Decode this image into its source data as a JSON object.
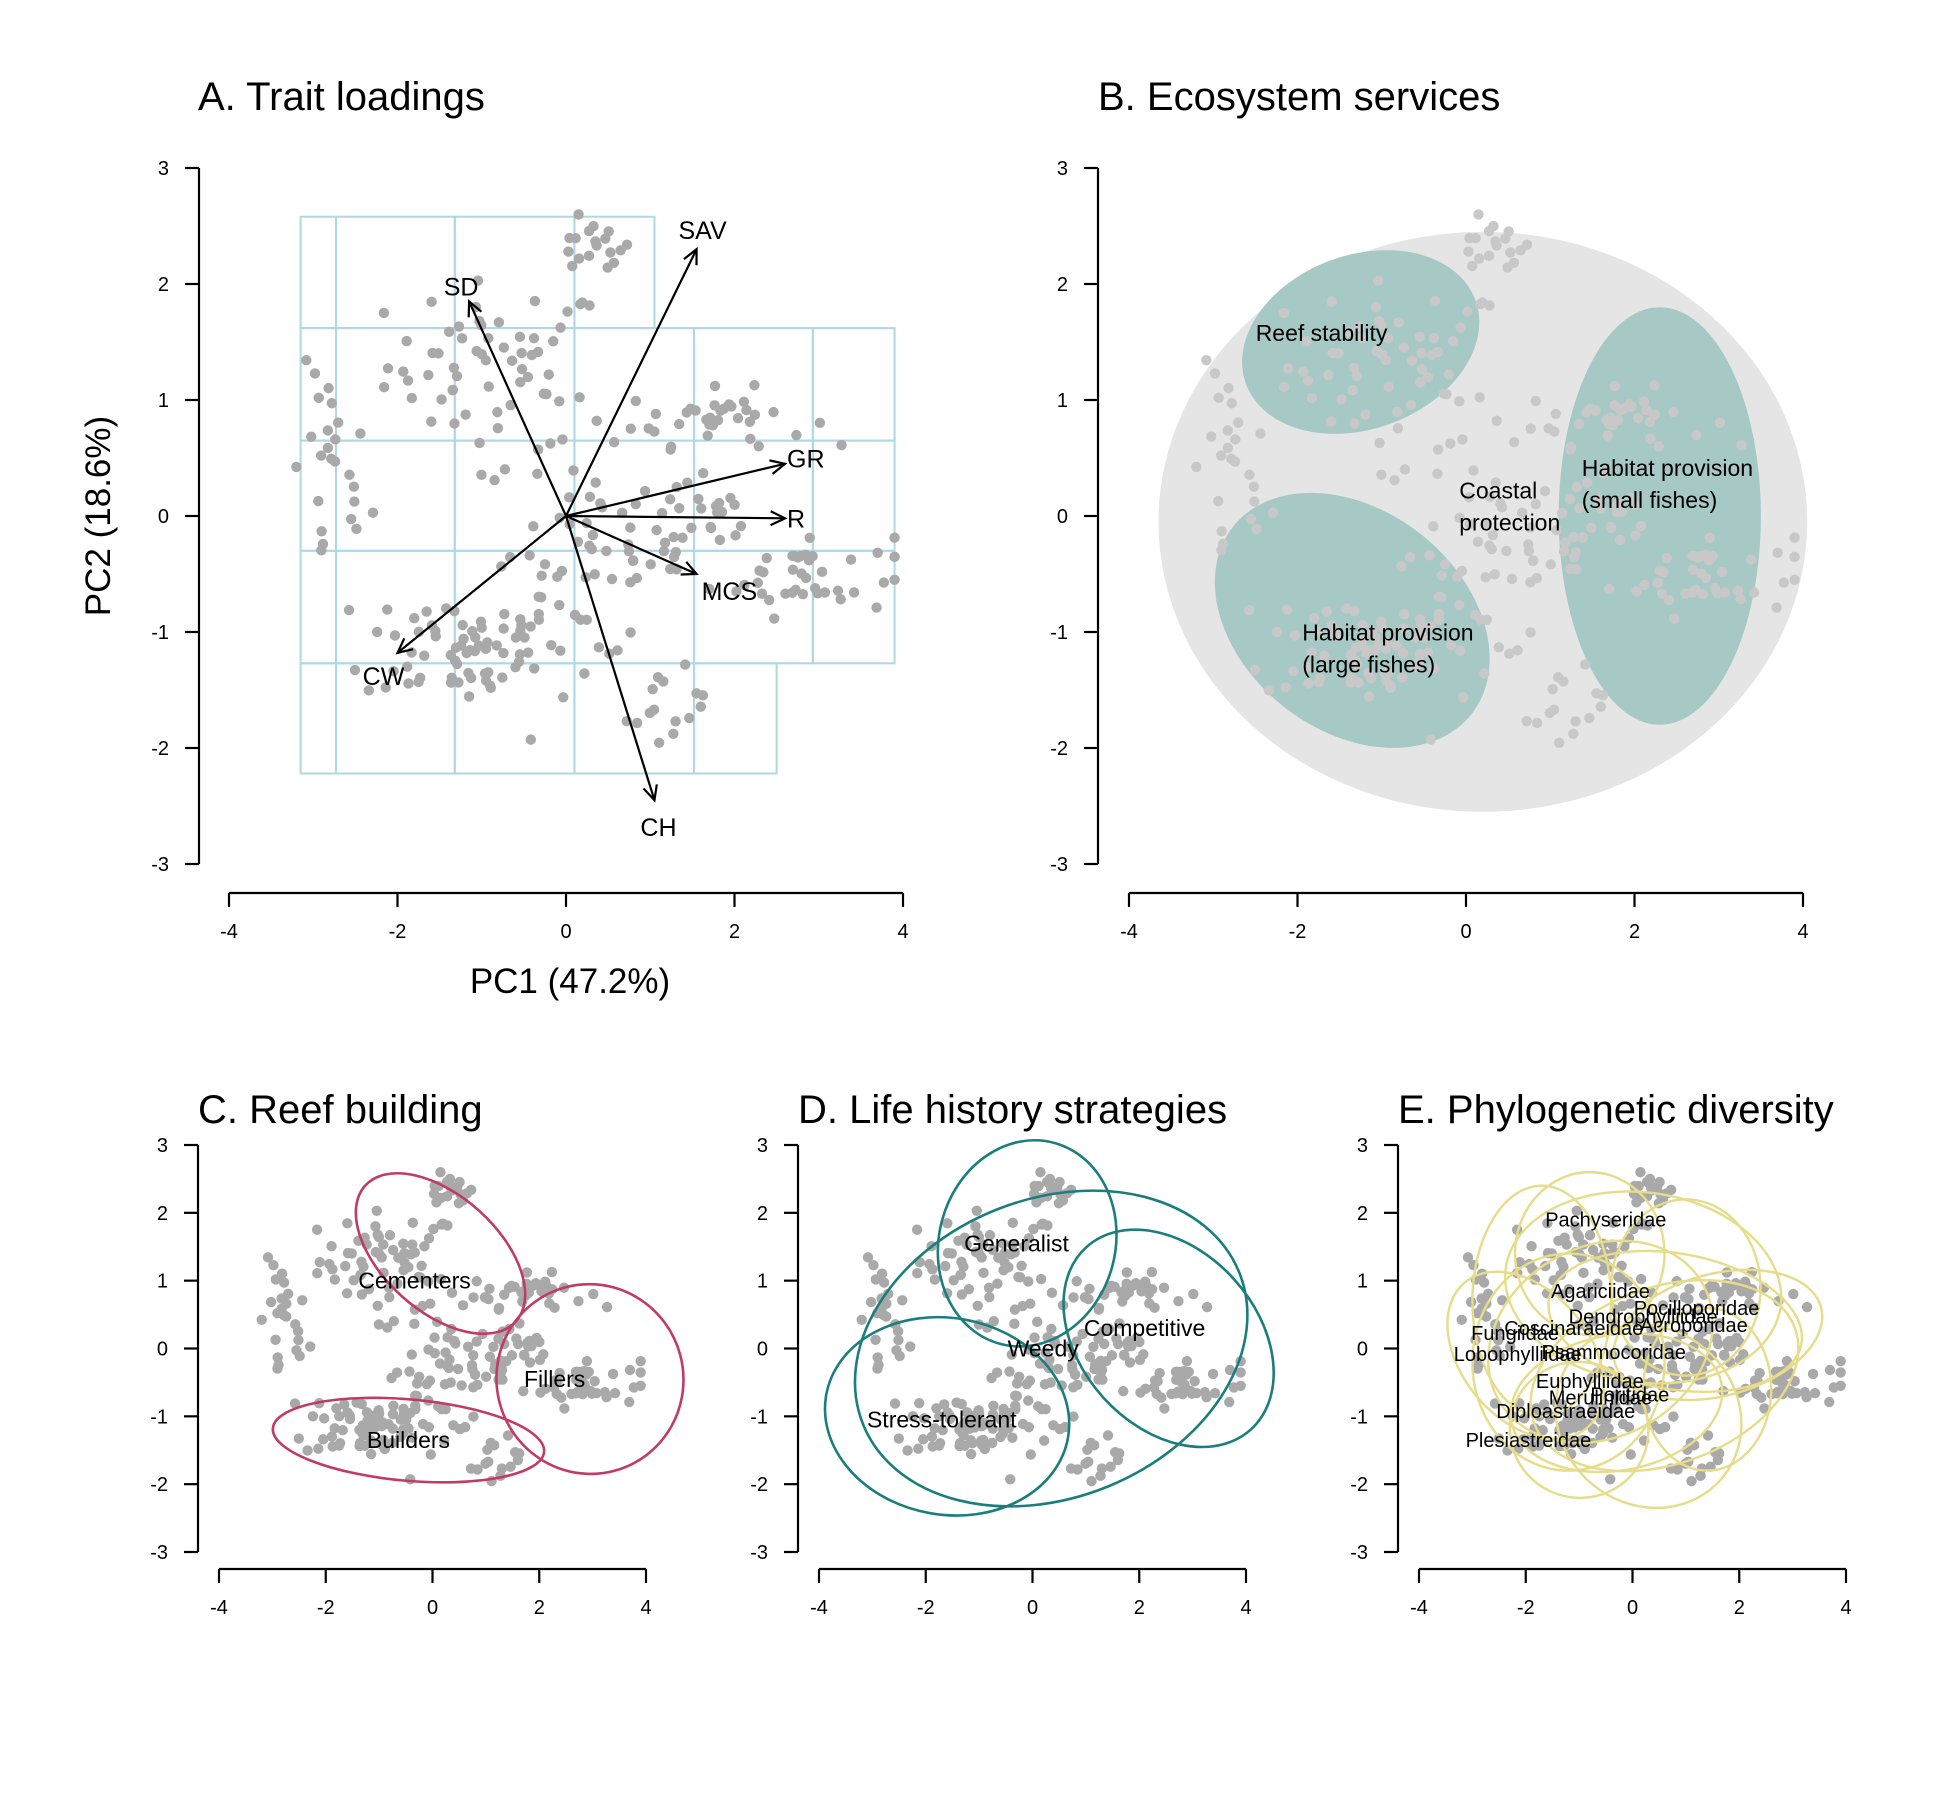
{
  "chart_data": [
    {
      "panel": "A",
      "type": "scatter",
      "title": "A. Trait loadings",
      "xlabel": "PC1 (47.2%)",
      "ylabel": "PC2 (18.6%)",
      "xlim": [
        -4,
        4
      ],
      "ylim": [
        -3,
        3
      ],
      "xticks": [
        "-4",
        "-2",
        "0",
        "2",
        "4"
      ],
      "yticks": [
        "-3",
        "-2",
        "-1",
        "0",
        "1",
        "2",
        "3"
      ],
      "grid_x": [
        -4.15,
        -2.73,
        -1.32,
        0.1,
        1.52,
        2.93
      ],
      "grid_rows": [
        {
          "y": [
            1.62,
            2.58
          ],
          "x": [
            -3.15,
            1.05
          ]
        },
        {
          "y": [
            0.65,
            1.62
          ],
          "x": [
            -3.15,
            3.9
          ]
        },
        {
          "y": [
            -0.3,
            0.65
          ],
          "x": [
            -3.15,
            3.9
          ]
        },
        {
          "y": [
            -1.27,
            -0.3
          ],
          "x": [
            -3.15,
            3.9
          ]
        },
        {
          "y": [
            -2.22,
            -1.27
          ],
          "x": [
            -3.15,
            2.5
          ]
        }
      ],
      "arrows": [
        {
          "label": "SD",
          "x": -1.15,
          "y": 1.85
        },
        {
          "label": "SAV",
          "x": 1.55,
          "y": 2.3
        },
        {
          "label": "GR",
          "x": 2.6,
          "y": 0.45
        },
        {
          "label": "R",
          "x": 2.6,
          "y": -0.02
        },
        {
          "label": "MCS",
          "x": 1.55,
          "y": -0.5
        },
        {
          "label": "CH",
          "x": 1.05,
          "y": -2.45
        },
        {
          "label": "CW",
          "x": -2.0,
          "y": -1.18
        }
      ],
      "grid_color": "#add8e6",
      "point_color": "#a9a9a9"
    },
    {
      "panel": "B",
      "type": "scatter",
      "title": "B. Ecosystem services",
      "xlim": [
        -4,
        4
      ],
      "ylim": [
        -3,
        3
      ],
      "xticks": [
        "-4",
        "-2",
        "0",
        "2",
        "4"
      ],
      "yticks": [
        "-3",
        "-2",
        "-1",
        "0",
        "1",
        "2",
        "3"
      ],
      "outer_region": {
        "cx": 0.2,
        "cy": -0.05,
        "rx": 3.85,
        "ry": 2.5
      },
      "groups": [
        {
          "label": [
            "Reef stability"
          ],
          "cx": -1.25,
          "cy": 1.5,
          "rx": 1.45,
          "ry": 0.75,
          "angle": 20
        },
        {
          "label": [
            "Coastal",
            "protection"
          ],
          "cx": 0.0,
          "cy": 0.15,
          "rx": 0,
          "ry": 0,
          "angle": 0
        },
        {
          "label": [
            "Habitat provision",
            "(small fishes)"
          ],
          "cx": 2.3,
          "cy": 0.0,
          "rx": 1.2,
          "ry": 1.8,
          "angle": 0
        },
        {
          "label": [
            "Habitat provision",
            "(large fishes)"
          ],
          "cx": -1.35,
          "cy": -0.9,
          "rx": 1.8,
          "ry": 0.95,
          "angle": -38
        }
      ],
      "region_fill": "#e5e5e5",
      "group_fill": "#a6c9c6",
      "point_color": "#c8c8c8"
    },
    {
      "panel": "C",
      "type": "scatter",
      "title": "C. Reef building",
      "xlim": [
        -4,
        4
      ],
      "ylim": [
        -3,
        3
      ],
      "xticks": [
        "-4",
        "-2",
        "0",
        "2",
        "4"
      ],
      "yticks": [
        "-3",
        "-2",
        "-1",
        "0",
        "1",
        "2",
        "3"
      ],
      "groups": [
        {
          "label": "Cementers",
          "cx": 0.15,
          "cy": 1.4,
          "rx": 1.9,
          "ry": 0.85,
          "angle": -42
        },
        {
          "label": "Fillers",
          "cx": 2.95,
          "cy": -0.45,
          "rx": 1.75,
          "ry": 1.4,
          "angle": 15
        },
        {
          "label": "Builders",
          "cx": -0.45,
          "cy": -1.35,
          "rx": 2.55,
          "ry": 0.6,
          "angle": -5
        }
      ],
      "ellipse_color": "#c13b68",
      "point_color": "#a9a9a9"
    },
    {
      "panel": "D",
      "type": "scatter",
      "title": "D. Life history strategies",
      "xlim": [
        -4,
        4
      ],
      "ylim": [
        -3,
        3
      ],
      "xticks": [
        "-4",
        "-2",
        "0",
        "2",
        "4"
      ],
      "yticks": [
        "-3",
        "-2",
        "-1",
        "0",
        "1",
        "2",
        "3"
      ],
      "groups": [
        {
          "label": "Generalist",
          "cx": -0.1,
          "cy": 1.55,
          "rx": 1.95,
          "ry": 1.3,
          "angle": 75
        },
        {
          "label": "Competitive",
          "cx": 2.55,
          "cy": 0.15,
          "rx": 2.3,
          "ry": 1.3,
          "angle": -48
        },
        {
          "label": "Weedy",
          "cx": 0.35,
          "cy": 0.0,
          "rx": 3.8,
          "ry": 2.2,
          "angle": 22
        },
        {
          "label": "Stress-tolerant",
          "cx": -1.6,
          "cy": -1.0,
          "rx": 2.3,
          "ry": 1.45,
          "angle": -10
        }
      ],
      "ellipse_color": "#1b7e7c",
      "point_color": "#a9a9a9"
    },
    {
      "panel": "E",
      "type": "scatter",
      "title": "E. Phylogenetic diversity",
      "xlim": [
        -4,
        4
      ],
      "ylim": [
        -3,
        3
      ],
      "xticks": [
        "-4",
        "-2",
        "0",
        "2",
        "4"
      ],
      "yticks": [
        "-3",
        "-2",
        "-1",
        "0",
        "1",
        "2",
        "3"
      ],
      "families": [
        {
          "label": "Pachyseridae",
          "x": -0.5,
          "y": 1.9
        },
        {
          "label": "Agariciidae",
          "x": -0.6,
          "y": 0.85
        },
        {
          "label": "Pocilloporidae",
          "x": 1.2,
          "y": 0.6
        },
        {
          "label": "Dendrophylliidae",
          "x": 0.2,
          "y": 0.47
        },
        {
          "label": "Acroporidae",
          "x": 1.15,
          "y": 0.35
        },
        {
          "label": "Coscinaraeidae",
          "x": -1.1,
          "y": 0.3
        },
        {
          "label": "Fungiidae",
          "x": -2.2,
          "y": 0.23
        },
        {
          "label": "Lobophylliidae",
          "x": -2.15,
          "y": -0.08
        },
        {
          "label": "Psammocoridae",
          "x": -0.35,
          "y": -0.05
        },
        {
          "label": "Euphylliidae",
          "x": -0.8,
          "y": -0.48
        },
        {
          "label": "Poritidae",
          "x": -0.05,
          "y": -0.68
        },
        {
          "label": "Merulinidae",
          "x": -0.6,
          "y": -0.72
        },
        {
          "label": "Diploastraeidae",
          "x": -1.25,
          "y": -0.92
        },
        {
          "label": "Plesiastreidae",
          "x": -1.95,
          "y": -1.35
        }
      ],
      "ellipse_color": "#e6dc8a",
      "point_color": "#a9a9a9"
    }
  ]
}
